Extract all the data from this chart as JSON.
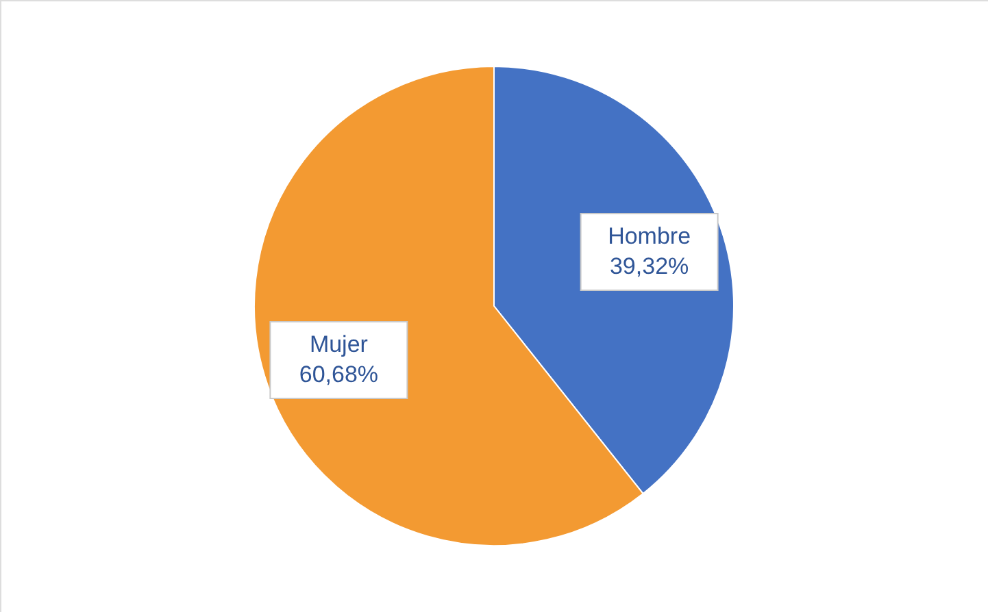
{
  "chart_data": {
    "type": "pie",
    "categories": [
      "Hombre",
      "Mujer"
    ],
    "values": [
      39.32,
      60.68
    ],
    "colors": [
      "#4472c4",
      "#f39a32"
    ],
    "value_labels": [
      "39,32%",
      "60,68%"
    ]
  }
}
